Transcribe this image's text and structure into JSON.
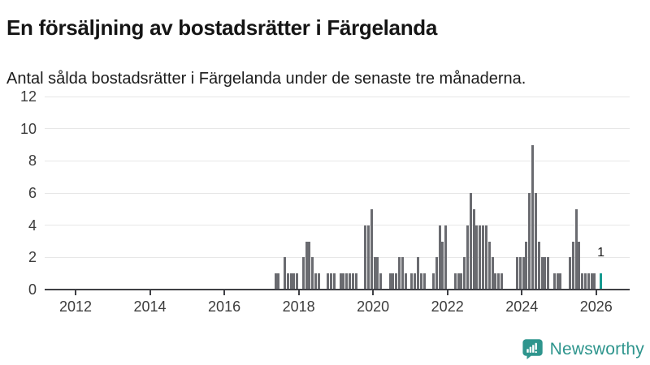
{
  "header": {
    "title": "En försäljning av bostadsrätter i Färgelanda",
    "subtitle": "Antal sålda bostadsrätter i Färgelanda under de senaste tre månaderna."
  },
  "footer": {
    "brand": "Newsworthy"
  },
  "colors": {
    "bar": "#6a6b70",
    "highlight": "#169a90",
    "grid": "#e7e7e7",
    "axis": "#3f4045",
    "brand_teal": "#2e958d"
  },
  "chart_data": {
    "type": "bar",
    "title": "En försäljning av bostadsrätter i Färgelanda",
    "subtitle": "Antal sålda bostadsrätter i Färgelanda under de senaste tre månaderna.",
    "xlabel": "",
    "ylabel": "",
    "ylim": [
      0,
      12
    ],
    "y_ticks": [
      0,
      2,
      4,
      6,
      8,
      10,
      12
    ],
    "x_ticks": [
      2012,
      2014,
      2016,
      2018,
      2020,
      2022,
      2024,
      2026
    ],
    "x_range_years": [
      2011.17,
      2026.9
    ],
    "grid": true,
    "legend_position": "none",
    "bar_color": "#6a6b70",
    "highlight": {
      "month": "2026-02",
      "value": 1,
      "label": "1",
      "color": "#169a90"
    },
    "months": [
      "2017-05",
      "2017-06",
      "2017-07",
      "2017-08",
      "2017-09",
      "2017-10",
      "2017-11",
      "2017-12",
      "2018-01",
      "2018-02",
      "2018-03",
      "2018-04",
      "2018-05",
      "2018-06",
      "2018-07",
      "2018-08",
      "2018-09",
      "2018-10",
      "2018-11",
      "2018-12",
      "2019-01",
      "2019-02",
      "2019-03",
      "2019-04",
      "2019-05",
      "2019-06",
      "2019-07",
      "2019-08",
      "2019-09",
      "2019-10",
      "2019-11",
      "2019-12",
      "2020-01",
      "2020-02",
      "2020-03",
      "2020-04",
      "2020-05",
      "2020-06",
      "2020-07",
      "2020-08",
      "2020-09",
      "2020-10",
      "2020-11",
      "2020-12",
      "2021-01",
      "2021-02",
      "2021-03",
      "2021-04",
      "2021-05",
      "2021-06",
      "2021-07",
      "2021-08",
      "2021-09",
      "2021-10",
      "2021-11",
      "2021-12",
      "2022-01",
      "2022-02",
      "2022-03",
      "2022-04",
      "2022-05",
      "2022-06",
      "2022-07",
      "2022-08",
      "2022-09",
      "2022-10",
      "2022-11",
      "2022-12",
      "2023-01",
      "2023-02",
      "2023-03",
      "2023-04",
      "2023-05",
      "2023-06",
      "2023-07",
      "2023-08",
      "2023-09",
      "2023-10",
      "2023-11",
      "2023-12",
      "2024-01",
      "2024-02",
      "2024-03",
      "2024-04",
      "2024-05",
      "2024-06",
      "2024-07",
      "2024-08",
      "2024-09",
      "2024-10",
      "2024-11",
      "2024-12",
      "2025-01",
      "2025-02",
      "2025-03",
      "2025-04",
      "2025-05",
      "2025-06",
      "2025-07",
      "2025-08",
      "2025-09",
      "2025-10",
      "2025-11",
      "2025-12",
      "2026-01",
      "2026-02"
    ],
    "values": [
      1,
      1,
      0,
      2,
      1,
      1,
      1,
      1,
      0,
      2,
      3,
      3,
      2,
      1,
      1,
      0,
      0,
      1,
      1,
      1,
      0,
      1,
      1,
      1,
      1,
      1,
      1,
      0,
      0,
      4,
      4,
      5,
      2,
      2,
      1,
      0,
      0,
      1,
      1,
      1,
      2,
      2,
      1,
      0,
      1,
      1,
      2,
      1,
      1,
      0,
      0,
      1,
      2,
      4,
      3,
      4,
      0,
      0,
      1,
      1,
      1,
      2,
      4,
      6,
      5,
      4,
      4,
      4,
      4,
      3,
      2,
      1,
      1,
      1,
      0,
      0,
      0,
      0,
      2,
      2,
      2,
      3,
      6,
      9,
      6,
      3,
      2,
      2,
      2,
      0,
      1,
      1,
      1,
      0,
      0,
      2,
      3,
      5,
      3,
      1,
      1,
      1,
      1,
      1,
      0,
      1
    ]
  }
}
